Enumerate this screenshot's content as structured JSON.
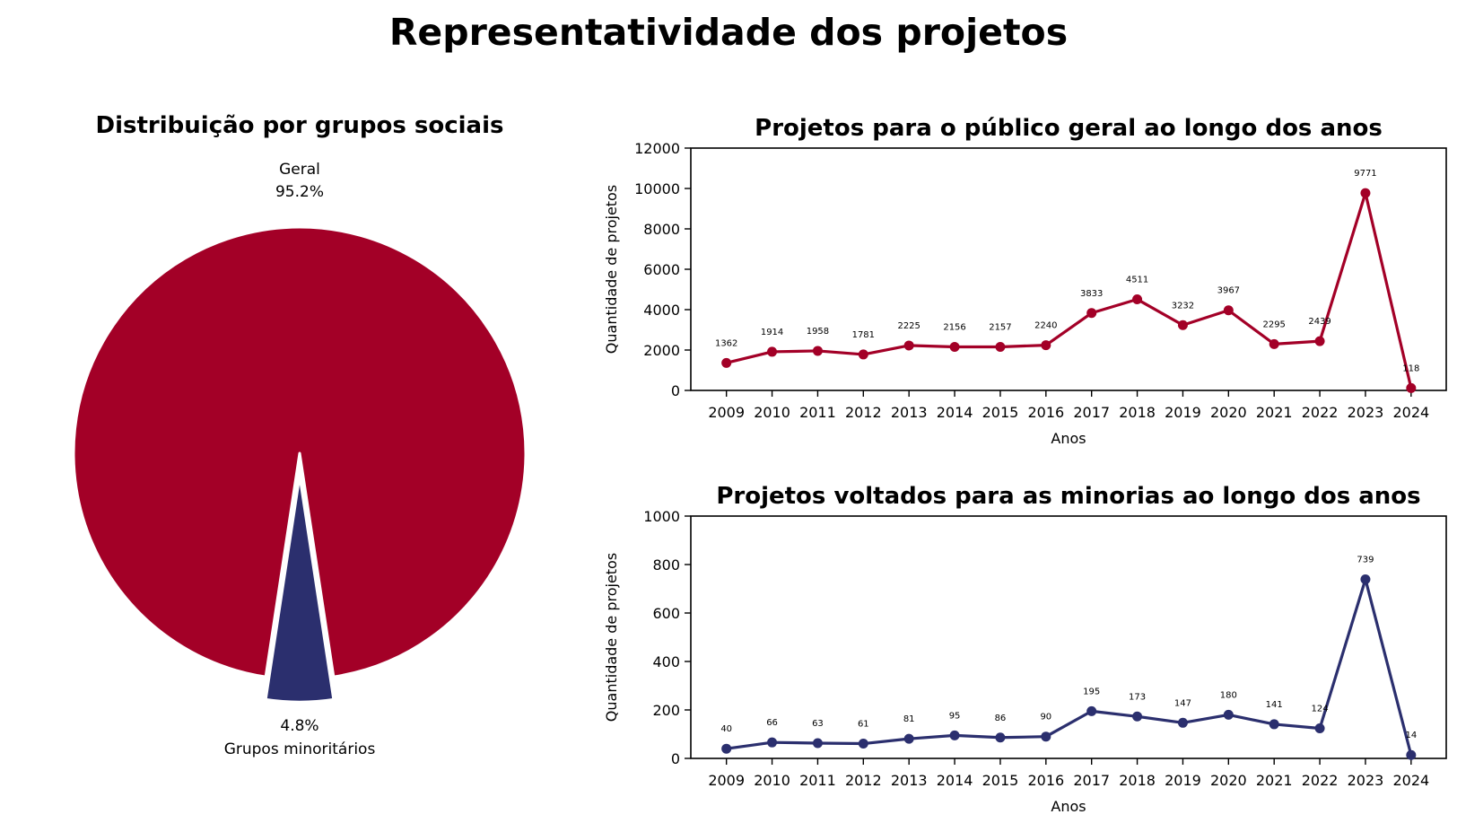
{
  "figure": {
    "title": "Representatividade dos projetos"
  },
  "colors": {
    "geral": "#a30027",
    "minorias": "#2b2f6e"
  },
  "chart_data": [
    {
      "type": "pie",
      "title": "Distribuição por grupos sociais",
      "labels": [
        "Geral",
        "Grupos minoritários"
      ],
      "values": [
        95.2,
        4.8
      ],
      "value_labels": [
        "95.2%",
        "4.8%"
      ],
      "explode": [
        0,
        0.1
      ],
      "colors": [
        "#a30027",
        "#2b2f6e"
      ]
    },
    {
      "type": "line",
      "title": "Projetos para o público geral ao longo dos anos",
      "xlabel": "Anos",
      "ylabel": "Quantidade de projetos",
      "ylim": [
        0,
        12000
      ],
      "yticks": [
        0,
        2000,
        4000,
        6000,
        8000,
        10000,
        12000
      ],
      "x": [
        "2009",
        "2010",
        "2011",
        "2012",
        "2013",
        "2014",
        "2015",
        "2016",
        "2017",
        "2018",
        "2019",
        "2020",
        "2021",
        "2022",
        "2023",
        "2024"
      ],
      "values": [
        1362,
        1914,
        1958,
        1781,
        2225,
        2156,
        2157,
        2240,
        3833,
        4511,
        3232,
        3967,
        2295,
        2439,
        9771,
        118
      ],
      "color": "#a30027",
      "grid": false
    },
    {
      "type": "line",
      "title": "Projetos voltados para as minorias ao longo dos anos",
      "xlabel": "Anos",
      "ylabel": "Quantidade de projetos",
      "ylim": [
        0,
        1000
      ],
      "yticks": [
        0,
        200,
        400,
        600,
        800,
        1000
      ],
      "x": [
        "2009",
        "2010",
        "2011",
        "2012",
        "2013",
        "2014",
        "2015",
        "2016",
        "2017",
        "2018",
        "2019",
        "2020",
        "2021",
        "2022",
        "2023",
        "2024"
      ],
      "values": [
        40,
        66,
        63,
        61,
        81,
        95,
        86,
        90,
        195,
        173,
        147,
        180,
        141,
        124,
        739,
        14
      ],
      "color": "#2b2f6e",
      "grid": false
    }
  ]
}
